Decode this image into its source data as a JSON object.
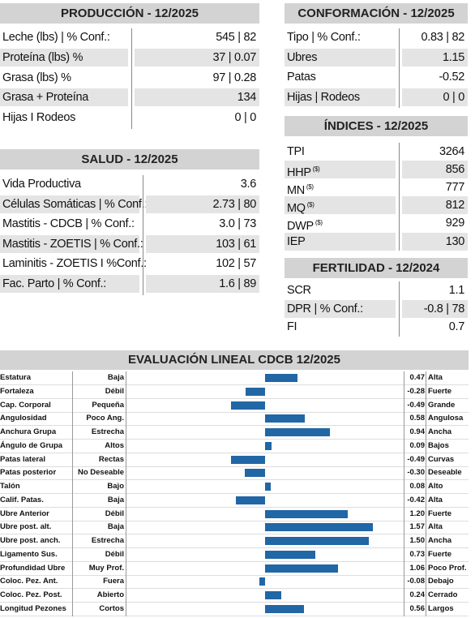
{
  "produccion": {
    "title": "PRODUCCIÓN - 12/2025",
    "rows": [
      [
        "Leche (lbs) | % Conf.:",
        "545 | 82"
      ],
      [
        "Proteína (lbs) %",
        "37 | 0.07"
      ],
      [
        "Grasa (lbs) %",
        "97 | 0.28"
      ],
      [
        "Grasa + Proteína",
        "134"
      ],
      [
        "Hijas I Rodeos",
        "0 | 0"
      ]
    ]
  },
  "salud": {
    "title": "SALUD - 12/2025",
    "rows": [
      [
        "Vida Productiva",
        "3.6"
      ],
      [
        "Células Somáticas | % Conf.:",
        "2.73 | 80"
      ],
      [
        "Mastitis - CDCB | % Conf.:",
        "3.0 | 73"
      ],
      [
        "Mastitis - ZOETIS | % Conf.:",
        "103 | 61"
      ],
      [
        "Laminitis - ZOETIS I %Conf.:",
        "102 | 57"
      ],
      [
        "Fac. Parto | % Conf.:",
        "1.6 | 89"
      ]
    ]
  },
  "conformacion": {
    "title": "CONFORMACIÓN - 12/2025",
    "rows": [
      [
        "Tipo | % Conf.:",
        "0.83 | 82"
      ],
      [
        "Ubres",
        "1.15"
      ],
      [
        "Patas",
        "-0.52"
      ],
      [
        "Hijas | Rodeos",
        "0 | 0"
      ]
    ]
  },
  "indices": {
    "title": "ÍNDICES - 12/2025",
    "rows": [
      {
        "label": "TPI",
        "value": "3264"
      },
      {
        "label": "HHP",
        "sup": "($)",
        "value": "856"
      },
      {
        "label": "MN",
        "sup": "($)",
        "value": "777"
      },
      {
        "label": "MQ",
        "sup": "($)",
        "value": "812"
      },
      {
        "label": "DWP",
        "sup": "($)",
        "value": "929"
      },
      {
        "label": "IEP",
        "value": "130"
      }
    ]
  },
  "fertilidad": {
    "title": "FERTILIDAD - 12/2024",
    "rows": [
      [
        "SCR",
        "1.1"
      ],
      [
        "DPR | % Conf.:",
        "-0.8 | 78"
      ],
      [
        "FI",
        "0.7"
      ]
    ]
  },
  "evaluacion": {
    "title": "EVALUACIÓN LINEAL CDCB 12/2025",
    "color": "#2166a5",
    "traits": [
      "Estatura",
      "Fortaleza",
      "Cap. Corporal",
      "Angulosidad",
      "Anchura Grupa",
      "Ángulo de Grupa",
      "Patas lateral",
      "Patas posterior",
      "Talón",
      "Calif. Patas.",
      "Ubre Anterior",
      "Ubre post. alt.",
      "Ubre post. anch.",
      "Ligamento Sus.",
      "Profundidad Ubre",
      "Coloc. Pez. Ant.",
      "Coloc. Pez. Post.",
      "Longitud Pezones"
    ],
    "low": [
      "Baja",
      "Débil",
      "Pequeña",
      "Poco Ang.",
      "Estrecha",
      "Altos",
      "Rectas",
      "No Deseable",
      "Bajo",
      "Baja",
      "Débil",
      "Baja",
      "Estrecha",
      "Débil",
      "Muy Prof.",
      "Fuera",
      "Abierto",
      "Cortos"
    ],
    "high": [
      "Alta",
      "Fuerte",
      "Grande",
      "Angulosa",
      "Ancha",
      "Bajos",
      "Curvas",
      "Deseable",
      "Alto",
      "Alta",
      "Fuerte",
      "Alta",
      "Ancha",
      "Fuerte",
      "Poco Prof.",
      "Debajo",
      "Cerrado",
      "Largos"
    ],
    "values": [
      0.47,
      -0.28,
      -0.49,
      0.58,
      0.94,
      0.09,
      -0.49,
      -0.3,
      0.08,
      -0.42,
      1.2,
      1.57,
      1.5,
      0.73,
      1.06,
      -0.08,
      0.24,
      0.56
    ],
    "value_labels": [
      "0.47",
      "-0.28",
      "-0.49",
      "0.58",
      "0.94",
      "0.09",
      "-0.49",
      "-0.30",
      "0.08",
      "-0.42",
      "1.20",
      "1.57",
      "1.50",
      "0.73",
      "1.06",
      "-0.08",
      "0.24",
      "0.56"
    ]
  }
}
